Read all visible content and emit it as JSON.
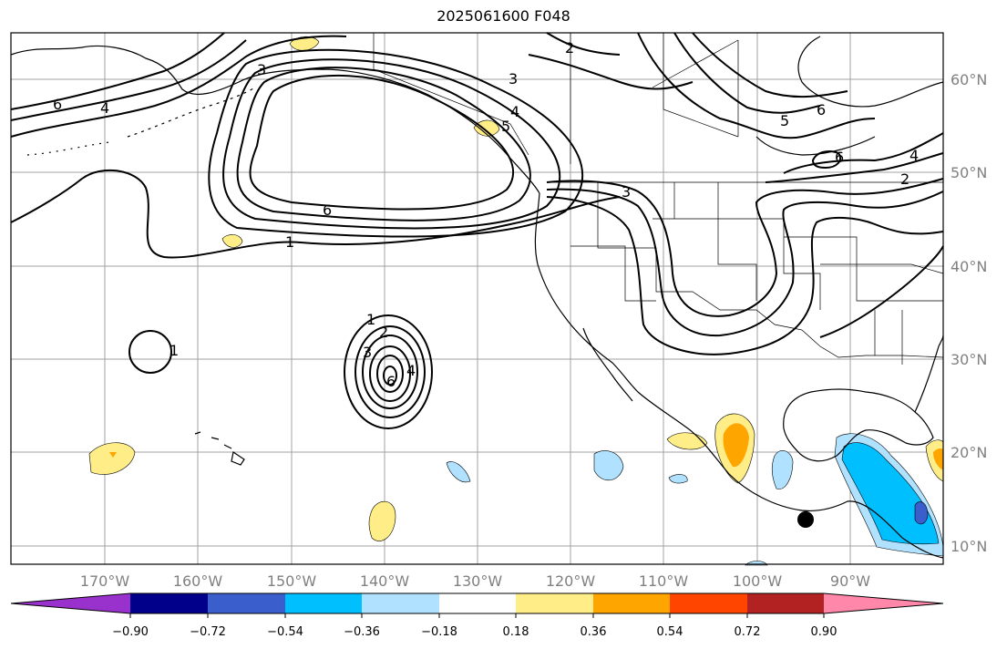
{
  "title": "2025061600 F048",
  "map": {
    "lon_range": [
      -180,
      -80
    ],
    "lat_range": [
      8,
      65
    ],
    "lon_labels": [
      "170°W",
      "160°W",
      "150°W",
      "140°W",
      "130°W",
      "120°W",
      "110°W",
      "100°W",
      "90°W"
    ],
    "lat_labels": [
      "60°N",
      "50°N",
      "40°N",
      "30°N",
      "20°N",
      "10°N"
    ]
  },
  "colorbar": {
    "ticks": [
      "−0.90",
      "−0.72",
      "−0.54",
      "−0.36",
      "−0.18",
      "0.18",
      "0.36",
      "0.54",
      "0.72",
      "0.90"
    ],
    "colors": [
      "#9932cc",
      "#00008b",
      "#3a5fcd",
      "#00bfff",
      "#b0e2ff",
      "#ffffff",
      "#ffee88",
      "#ffa500",
      "#ff4500",
      "#b22222",
      "#ff88aa"
    ]
  },
  "contour_labels": [
    {
      "text": "1",
      "name": "contour-label-1-central-pacific"
    },
    {
      "text": "6",
      "name": "contour-label-6-alaska-low"
    },
    {
      "text": "3",
      "name": "contour-label-3-north"
    },
    {
      "text": "2",
      "name": "contour-label-2-north"
    },
    {
      "text": "4",
      "name": "contour-label-4-bc"
    },
    {
      "text": "5",
      "name": "contour-label-5-bc"
    },
    {
      "text": "3",
      "name": "contour-label-3-pnw"
    },
    {
      "text": "5",
      "name": "contour-label-5-canada"
    },
    {
      "text": "6",
      "name": "contour-label-6-canada"
    },
    {
      "text": "6",
      "name": "contour-label-6-hudson"
    },
    {
      "text": "4",
      "name": "contour-label-4-east"
    },
    {
      "text": "2",
      "name": "contour-label-2-east"
    },
    {
      "text": "6",
      "name": "contour-label-6-west-edge"
    },
    {
      "text": "4",
      "name": "contour-label-4-west-edge"
    },
    {
      "text": "3",
      "name": "contour-label-3-aleutian"
    },
    {
      "text": "1",
      "name": "contour-label-1-small-ring"
    },
    {
      "text": "1",
      "name": "contour-label-1-cyclone"
    },
    {
      "text": "2",
      "name": "contour-label-2-cyclone"
    },
    {
      "text": "3",
      "name": "contour-label-3-cyclone"
    },
    {
      "text": "4",
      "name": "contour-label-4-cyclone"
    },
    {
      "text": "6",
      "name": "contour-label-6-cyclone"
    }
  ]
}
